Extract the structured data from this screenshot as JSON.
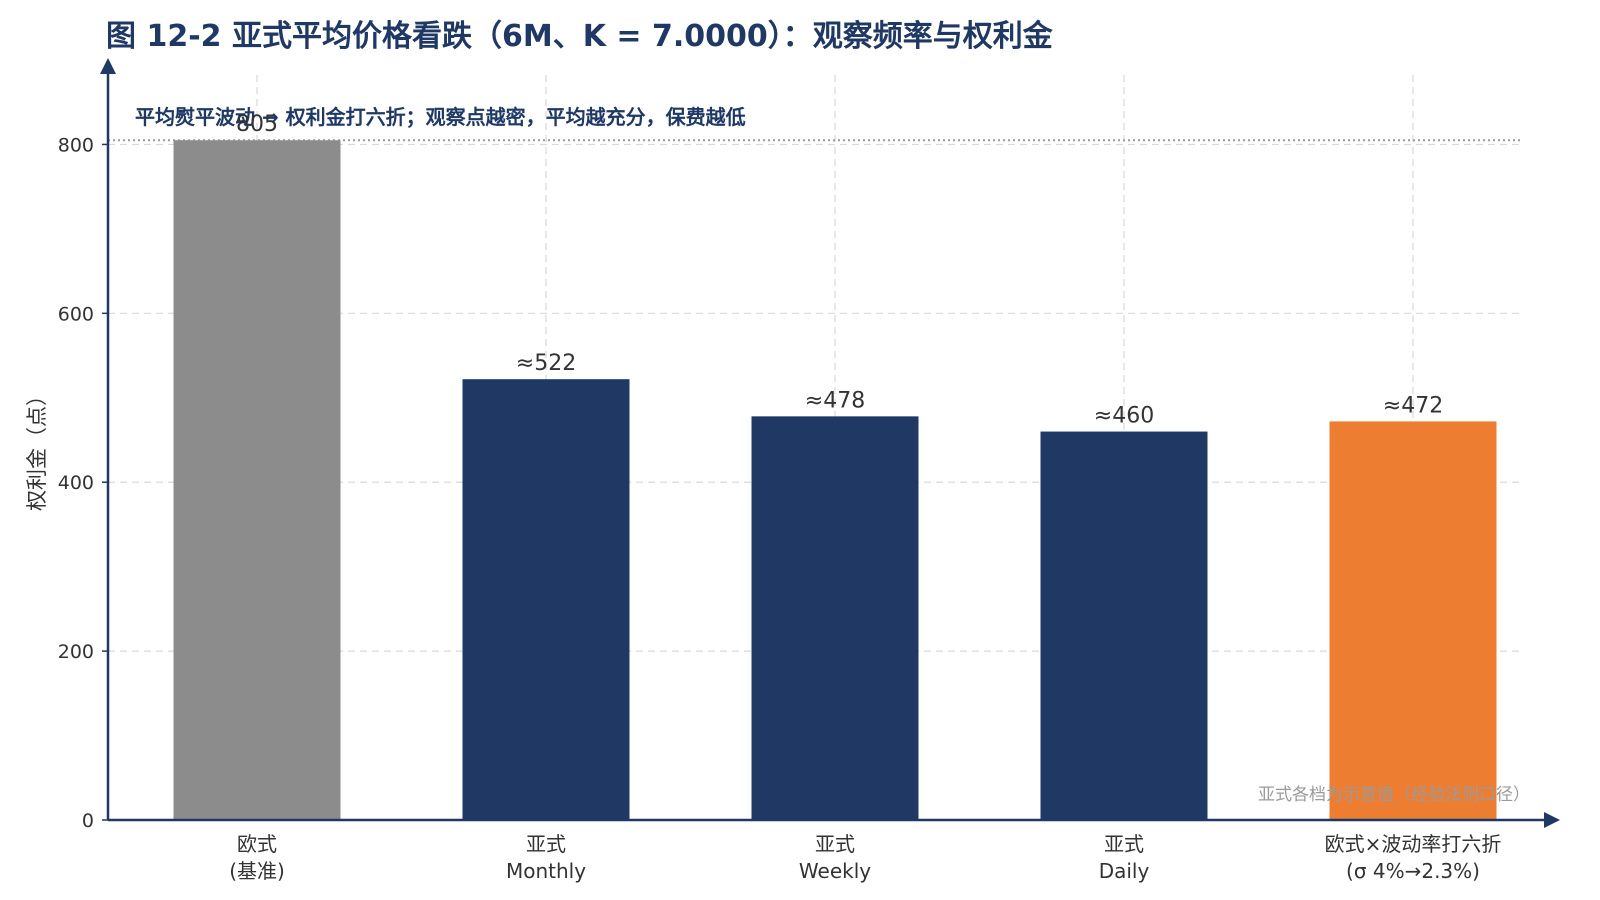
{
  "chart_data": {
    "type": "bar",
    "title": "图 12-2 亚式平均价格看跌（6M、K = 7.0000）：观察频率与权利金",
    "subtitle": "平均熨平波动 → 权利金打六折；观察点越密，平均越充分，保费越低",
    "xlabel": "",
    "ylabel": "权利金（点）",
    "ylim": [
      0,
      900
    ],
    "yticks": [
      0,
      200,
      400,
      600,
      800
    ],
    "grid": true,
    "categories": [
      [
        "欧式",
        "(基准)"
      ],
      [
        "亚式",
        "Monthly"
      ],
      [
        "亚式",
        "Weekly"
      ],
      [
        "亚式",
        "Daily"
      ],
      [
        "欧式×波动率打六折",
        "(σ 4%→2.3%)"
      ]
    ],
    "values": [
      805,
      522,
      478,
      460,
      472
    ],
    "value_labels": [
      "805",
      "≈522",
      "≈478",
      "≈460",
      "≈472"
    ],
    "bar_colors": [
      "#8c8c8c",
      "#1f3864",
      "#1f3864",
      "#1f3864",
      "#ed7d31"
    ],
    "reference_line": 805,
    "note": "亚式各档为示意值（经验法则口径）"
  }
}
